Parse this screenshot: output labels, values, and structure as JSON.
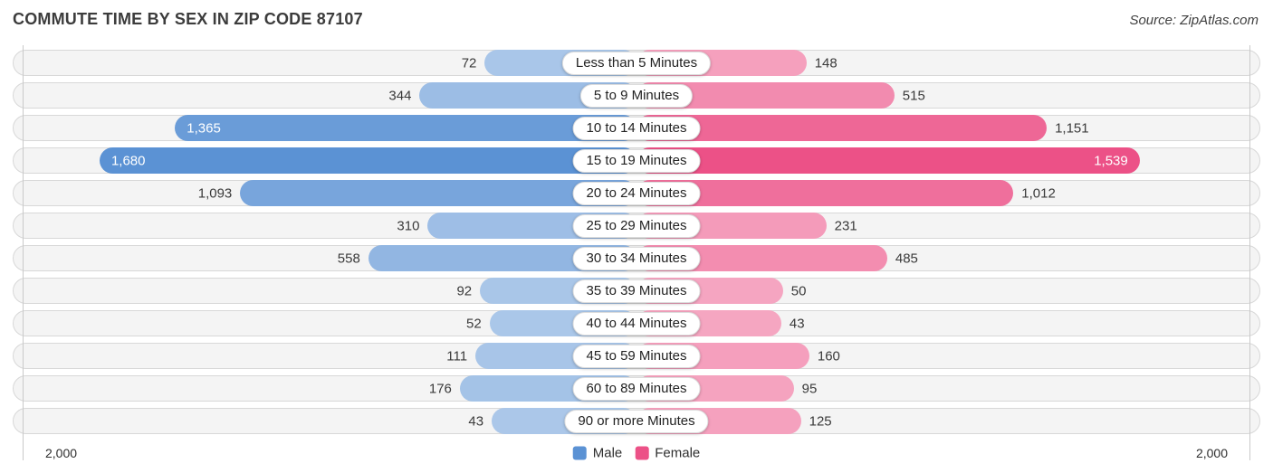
{
  "header": {
    "title": "COMMUTE TIME BY SEX IN ZIP CODE 87107",
    "source": "Source: ZipAtlas.com"
  },
  "chart_data": {
    "type": "bar",
    "subtype": "bidirectional-tornado",
    "title": "Commute Time by Sex in Zip Code 87107",
    "categories": [
      "Less than 5 Minutes",
      "5 to 9 Minutes",
      "10 to 14 Minutes",
      "15 to 19 Minutes",
      "20 to 24 Minutes",
      "25 to 29 Minutes",
      "30 to 34 Minutes",
      "35 to 39 Minutes",
      "40 to 44 Minutes",
      "45 to 59 Minutes",
      "60 to 89 Minutes",
      "90 or more Minutes"
    ],
    "series": [
      {
        "name": "Male",
        "color": "#5b92d4",
        "values": [
          72,
          344,
          1365,
          1680,
          1093,
          310,
          558,
          92,
          52,
          111,
          176,
          43
        ]
      },
      {
        "name": "Female",
        "color": "#ec5187",
        "values": [
          148,
          515,
          1151,
          1539,
          1012,
          231,
          485,
          50,
          43,
          160,
          95,
          125
        ]
      }
    ],
    "axis": {
      "max": 2000,
      "left_max_label": "2,000",
      "right_max_label": "2,000"
    },
    "legend_position": "bottom-center",
    "grid": "edge-gridlines-only",
    "layout": {
      "min_bar_pct": 10.78,
      "pct_per_unit": 0.0192,
      "inside_label_threshold": 1200,
      "min_fade_alpha": 0.5
    }
  }
}
